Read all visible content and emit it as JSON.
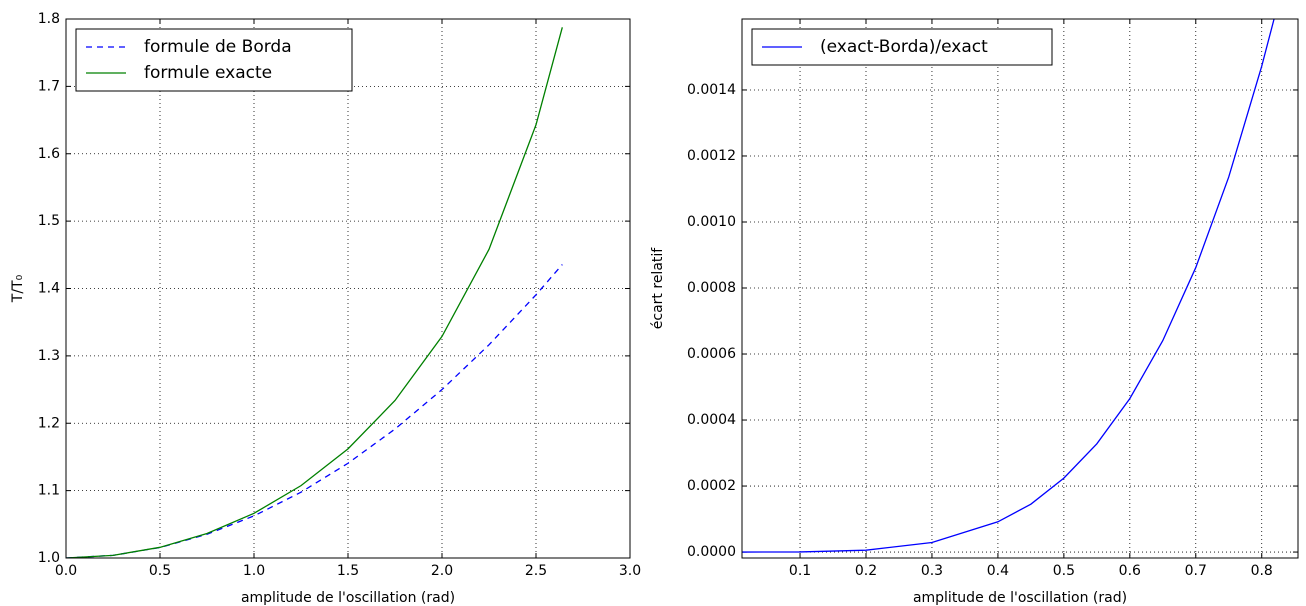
{
  "chart_data": [
    {
      "type": "line",
      "x_label": "amplitude de l'oscillation (rad)",
      "y_label": "T/T₀",
      "x": [
        0,
        0.25,
        0.5,
        0.75,
        1.0,
        1.25,
        1.5,
        1.75,
        2.0,
        2.25,
        2.5,
        2.64
      ],
      "series": [
        {
          "name": "formule de Borda",
          "color": "#0000ff",
          "linestyle": "dashed",
          "values": [
            1,
            1.00391,
            1.01563,
            1.03516,
            1.0625,
            1.09766,
            1.14063,
            1.19141,
            1.25,
            1.31641,
            1.39063,
            1.4356
          ]
        },
        {
          "name": "formule exacte",
          "color": "#008000",
          "linestyle": "solid",
          "values": [
            1,
            1.00392,
            1.01585,
            1.03633,
            1.06634,
            1.10741,
            1.16196,
            1.23375,
            1.32891,
            1.4581,
            1.643,
            1.7877
          ]
        }
      ],
      "xlim": [
        0,
        3
      ],
      "ylim": [
        1,
        1.8
      ],
      "xticks": [
        {
          "value": 0,
          "label": "0.0"
        },
        0.5,
        {
          "value": 1,
          "label": "1.0"
        },
        1.5,
        {
          "value": 2,
          "label": "2.0"
        },
        2.5,
        {
          "value": 3,
          "label": "3.0"
        }
      ],
      "yticks": [
        {
          "value": 1,
          "label": "1.0"
        },
        1.1,
        1.2,
        1.3,
        1.4,
        1.5,
        1.6,
        1.7,
        1.8
      ],
      "grid": true,
      "legend": "upper-left"
    },
    {
      "type": "line",
      "x_label": "amplitude de l'oscillation (rad)",
      "y_label": "écart relatif",
      "x": [
        0.01,
        0.1,
        0.2,
        0.3,
        0.4,
        0.45,
        0.5,
        0.55,
        0.6,
        0.65,
        0.7,
        0.75,
        0.8,
        0.82
      ],
      "series": [
        {
          "name": "(exact-Borda)/exact",
          "color": "#0000ff",
          "linestyle": "solid",
          "values": [
            0,
            3.6e-07,
            5.73e-06,
            2.89e-05,
            9.17e-05,
            0.0001451,
            0.000224,
            0.000328,
            0.0004649,
            0.0006406,
            0.0008619,
            0.0011365,
            0.0014721,
            0.001625
          ]
        }
      ],
      "xlim": [
        0.012,
        0.855
      ],
      "ylim": [
        -1.8e-05,
        0.001615
      ],
      "xticks": [
        0.1,
        0.2,
        0.3,
        0.4,
        0.5,
        0.6,
        0.7,
        0.8
      ],
      "yticks": [
        {
          "value": 0,
          "label": "0.0000"
        },
        {
          "value": 0.0002,
          "label": "0.0002"
        },
        {
          "value": 0.0004,
          "label": "0.0004"
        },
        {
          "value": 0.0006,
          "label": "0.0006"
        },
        {
          "value": 0.0008,
          "label": "0.0008"
        },
        {
          "value": 0.001,
          "label": "0.0010"
        },
        {
          "value": 0.0012,
          "label": "0.0012"
        },
        {
          "value": 0.0014,
          "label": "0.0014"
        }
      ],
      "grid": true,
      "legend": "upper-left"
    }
  ]
}
